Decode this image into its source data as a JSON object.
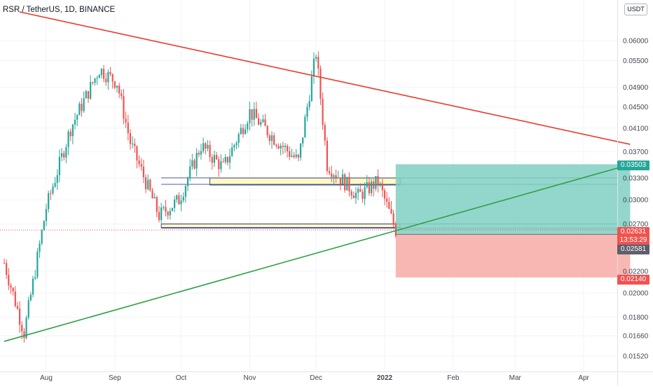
{
  "header": {
    "title": "RSR / TetherUS, 1D, BINANCE"
  },
  "currency_badge": "USDT",
  "colors": {
    "up": "#26a69a",
    "down": "#ef5350",
    "resistance_line": "#e8392c",
    "support_line": "#2ea043",
    "zone_fill": "#fff9c4",
    "profit_zone": "#80cfc2",
    "loss_zone": "#f8aaa6"
  },
  "price_tags": {
    "target": "0.03503",
    "last_price": "0.02631",
    "countdown": "13:53:29",
    "entry": "0.02581",
    "stop": "0.02140"
  },
  "chart_data": {
    "type": "candlestick",
    "title": "RSR / TetherUS, 1D, BINANCE",
    "y_axis": {
      "scale": "log",
      "ticks": [
        "0.06000",
        "0.05500",
        "0.04900",
        "0.04500",
        "0.04100",
        "0.03700",
        "0.03300",
        "0.03000",
        "0.02700",
        "0.02200",
        "0.02000",
        "0.01800",
        "0.01660",
        "0.01520"
      ]
    },
    "x_axis": {
      "ticks": [
        "Aug",
        "Sep",
        "Oct",
        "Nov",
        "Dec",
        "2022",
        "Feb",
        "Mar",
        "Apr"
      ]
    },
    "ohlc_keypoints": [
      {
        "date": "2021-07-13",
        "close": 0.0228
      },
      {
        "date": "2021-07-22",
        "close": 0.0168
      },
      {
        "date": "2021-08-01",
        "close": 0.029
      },
      {
        "date": "2021-08-12",
        "close": 0.041
      },
      {
        "date": "2021-08-25",
        "close": 0.053
      },
      {
        "date": "2021-09-02",
        "close": 0.05
      },
      {
        "date": "2021-09-08",
        "close": 0.0385
      },
      {
        "date": "2021-09-21",
        "close": 0.028
      },
      {
        "date": "2021-09-30",
        "close": 0.03
      },
      {
        "date": "2021-10-10",
        "close": 0.038
      },
      {
        "date": "2021-10-20",
        "close": 0.0345
      },
      {
        "date": "2021-11-01",
        "close": 0.044
      },
      {
        "date": "2021-11-10",
        "close": 0.04
      },
      {
        "date": "2021-11-23",
        "close": 0.0355
      },
      {
        "date": "2021-12-01",
        "close": 0.057
      },
      {
        "date": "2021-12-06",
        "close": 0.035
      },
      {
        "date": "2021-12-20",
        "close": 0.0305
      },
      {
        "date": "2021-12-29",
        "close": 0.0325
      },
      {
        "date": "2022-01-06",
        "close": 0.0263
      }
    ],
    "annotations": [
      {
        "kind": "trendline",
        "role": "resistance",
        "from": {
          "date": "2021-07-20",
          "price": 0.068
        },
        "to": {
          "date": "2022-04-22",
          "price": 0.0382
        }
      },
      {
        "kind": "trendline",
        "role": "support",
        "from": {
          "date": "2021-07-13",
          "price": 0.0162
        },
        "to": {
          "date": "2022-04-22",
          "price": 0.035
        }
      },
      {
        "kind": "zone",
        "price_low": 0.032,
        "price_high": 0.033,
        "from": "2021-10-14",
        "to": "2022-01-08"
      },
      {
        "kind": "zone",
        "price_low": 0.0266,
        "price_high": 0.027,
        "from": "2021-09-22",
        "to": "2022-01-08"
      },
      {
        "kind": "horizontal",
        "price": 0.033
      },
      {
        "kind": "horizontal",
        "price": 0.0321
      },
      {
        "kind": "horizontal",
        "price": 0.027
      },
      {
        "kind": "horizontal",
        "price": 0.0265
      },
      {
        "kind": "long_position",
        "entry": 0.02581,
        "target": 0.03503,
        "stop": 0.0214,
        "from": "2022-01-06",
        "to": "2022-04-22"
      }
    ],
    "last_price": 0.02631,
    "grid": true
  }
}
